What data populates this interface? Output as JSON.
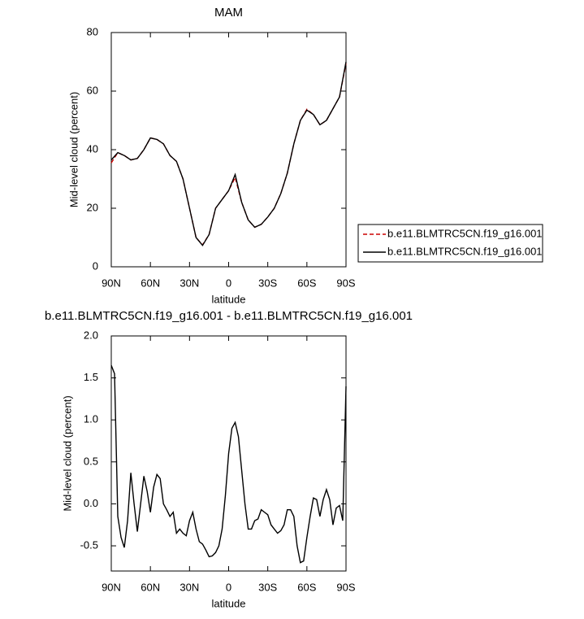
{
  "chart_data": [
    {
      "type": "line",
      "title": "MAM",
      "xlabel": "latitude",
      "ylabel": "Mid-level cloud (percent)",
      "x": [
        90,
        85,
        80,
        75,
        70,
        65,
        60,
        55,
        50,
        45,
        40,
        35,
        30,
        25,
        20,
        15,
        10,
        5,
        0,
        -5,
        -10,
        -15,
        -20,
        -25,
        -30,
        -35,
        -40,
        -45,
        -50,
        -55,
        -60,
        -65,
        -70,
        -75,
        -80,
        -85,
        -90
      ],
      "series": [
        {
          "name": "b.e11.BLMTRC5CN.f19_g16.001",
          "color": "#cc0000",
          "line_style": "dashed",
          "values": [
            35.5,
            39,
            38,
            36.5,
            37,
            40,
            44,
            43.5,
            42,
            38,
            36,
            30,
            20,
            10,
            7.5,
            11,
            20,
            23,
            26,
            30.5,
            22,
            16,
            13.5,
            14.5,
            17,
            20,
            25,
            32,
            42,
            50,
            53.8,
            52,
            48.5,
            50,
            54,
            58,
            69.5
          ]
        },
        {
          "name": "b.e11.BLMTRC5CN.f19_g16.001",
          "color": "#000000",
          "line_style": "solid",
          "values": [
            36.5,
            39,
            38,
            36.5,
            37,
            40,
            44,
            43.5,
            42,
            38,
            36,
            30,
            20,
            10,
            7.3,
            11,
            20,
            23,
            26,
            31.5,
            22,
            16,
            13.5,
            14.5,
            17,
            20,
            25,
            32,
            42,
            50,
            53.5,
            52,
            48.5,
            50,
            54,
            58,
            70
          ]
        }
      ],
      "xlim": [
        90,
        -90
      ],
      "xticks": [
        {
          "value": 90,
          "label": "90N"
        },
        {
          "value": 60,
          "label": "60N"
        },
        {
          "value": 30,
          "label": "30N"
        },
        0,
        {
          "value": -30,
          "label": "30S"
        },
        {
          "value": -60,
          "label": "60S"
        },
        {
          "value": -90,
          "label": "90S"
        }
      ],
      "ylim": [
        0,
        80
      ],
      "yticks": [
        0,
        20,
        40,
        60,
        80
      ],
      "legend": "right"
    },
    {
      "type": "line",
      "title": "b.e11.BLMTRC5CN.f19_g16.001 - b.e11.BLMTRC5CN.f19_g16.001",
      "xlabel": "latitude",
      "ylabel": "Mid-level cloud (percent)",
      "x": [
        90,
        87.5,
        85,
        82.5,
        80,
        77.5,
        75,
        72.5,
        70,
        67.5,
        65,
        62.5,
        60,
        57.5,
        55,
        52.5,
        50,
        47.5,
        45,
        42.5,
        40,
        37.5,
        35,
        32.5,
        30,
        27.5,
        25,
        22.5,
        20,
        17.5,
        15,
        12.5,
        10,
        7.5,
        5,
        2.5,
        0,
        -2.5,
        -5,
        -7.5,
        -10,
        -12.5,
        -15,
        -17.5,
        -20,
        -22.5,
        -25,
        -27.5,
        -30,
        -32.5,
        -35,
        -37.5,
        -40,
        -42.5,
        -45,
        -47.5,
        -50,
        -52.5,
        -55,
        -57.5,
        -60,
        -62.5,
        -65,
        -67.5,
        -70,
        -72.5,
        -75,
        -77.5,
        -80,
        -82.5,
        -85,
        -87.5,
        -90
      ],
      "series": [
        {
          "color": "#000000",
          "line_style": "solid",
          "values": [
            1.65,
            1.55,
            -0.15,
            -0.4,
            -0.52,
            -0.2,
            0.37,
            0.0,
            -0.33,
            0.0,
            0.33,
            0.15,
            -0.1,
            0.2,
            0.35,
            0.3,
            0.0,
            -0.07,
            -0.15,
            -0.1,
            -0.35,
            -0.3,
            -0.35,
            -0.38,
            -0.2,
            -0.1,
            -0.3,
            -0.45,
            -0.48,
            -0.55,
            -0.63,
            -0.62,
            -0.58,
            -0.5,
            -0.3,
            0.1,
            0.6,
            0.9,
            0.97,
            0.8,
            0.4,
            0.0,
            -0.3,
            -0.3,
            -0.2,
            -0.18,
            -0.07,
            -0.1,
            -0.13,
            -0.25,
            -0.3,
            -0.35,
            -0.32,
            -0.25,
            -0.07,
            -0.07,
            -0.15,
            -0.5,
            -0.7,
            -0.68,
            -0.4,
            -0.15,
            0.07,
            0.05,
            -0.15,
            0.05,
            0.17,
            0.05,
            -0.25,
            -0.05,
            -0.02,
            -0.2,
            1.4
          ]
        }
      ],
      "xlim": [
        90,
        -90
      ],
      "xticks": [
        {
          "value": 90,
          "label": "90N"
        },
        {
          "value": 60,
          "label": "60N"
        },
        {
          "value": 30,
          "label": "30N"
        },
        0,
        {
          "value": -30,
          "label": "30S"
        },
        {
          "value": -60,
          "label": "60S"
        },
        {
          "value": -90,
          "label": "90S"
        }
      ],
      "ylim": [
        -0.8,
        2.0
      ],
      "yticks": [
        -0.5,
        {
          "value": 0,
          "label": "0.0"
        },
        0.5,
        {
          "value": 1,
          "label": "1.0"
        },
        1.5,
        {
          "value": 2,
          "label": "2.0"
        }
      ]
    }
  ]
}
